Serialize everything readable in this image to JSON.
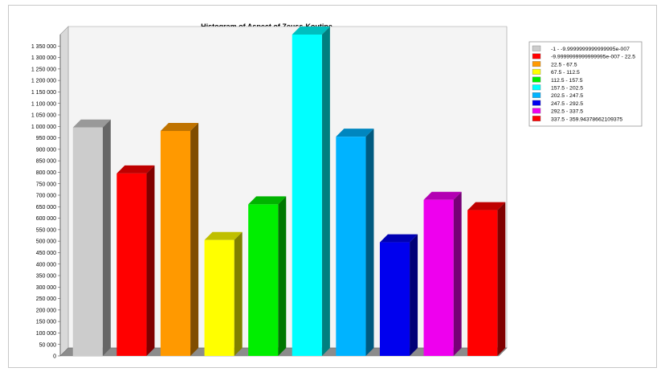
{
  "chart_data": {
    "type": "bar",
    "title": "Histogram of Aspect of Zeuss-Koutine",
    "xlabel": "",
    "ylabel": "",
    "ylim": [
      0,
      1400000
    ],
    "yticks": [
      0,
      50000,
      100000,
      150000,
      200000,
      250000,
      300000,
      350000,
      400000,
      450000,
      500000,
      550000,
      600000,
      650000,
      700000,
      750000,
      800000,
      850000,
      900000,
      950000,
      1000000,
      1050000,
      1100000,
      1150000,
      1200000,
      1250000,
      1300000,
      1350000
    ],
    "ytick_labels": [
      "0",
      "50 000",
      "100 000",
      "150 000",
      "200 000",
      "250 000",
      "300 000",
      "350 000",
      "400 000",
      "450 000",
      "500 000",
      "550 000",
      "600 000",
      "650 000",
      "700 000",
      "750 000",
      "800 000",
      "850 000",
      "900 000",
      "950 000",
      "1 000 000",
      "1 050 000",
      "1 100 000",
      "1 150 000",
      "1 200 000",
      "1 250 000",
      "1 300 000",
      "1 350 000"
    ],
    "grid": false,
    "style": "3d",
    "legend_position": "right",
    "categories": [
      "-1 - -9.9999999999999995e-007",
      "-9.9999999999999995e-007 - 22.5",
      "22.5 - 67.5",
      "67.5 - 112.5",
      "112.5 - 157.5",
      "157.5 - 202.5",
      "202.5 - 247.5",
      "247.5 - 292.5",
      "292.5 - 337.5",
      "337.5 - 359.94378662109375"
    ],
    "values": [
      995000,
      795000,
      980000,
      505000,
      660000,
      1400000,
      955000,
      495000,
      680000,
      635000
    ],
    "colors": [
      "#cccccc",
      "#ff0000",
      "#ff9900",
      "#ffff00",
      "#00ee00",
      "#00ffff",
      "#00b3ff",
      "#0000ee",
      "#ee00ee",
      "#ff0000"
    ]
  }
}
